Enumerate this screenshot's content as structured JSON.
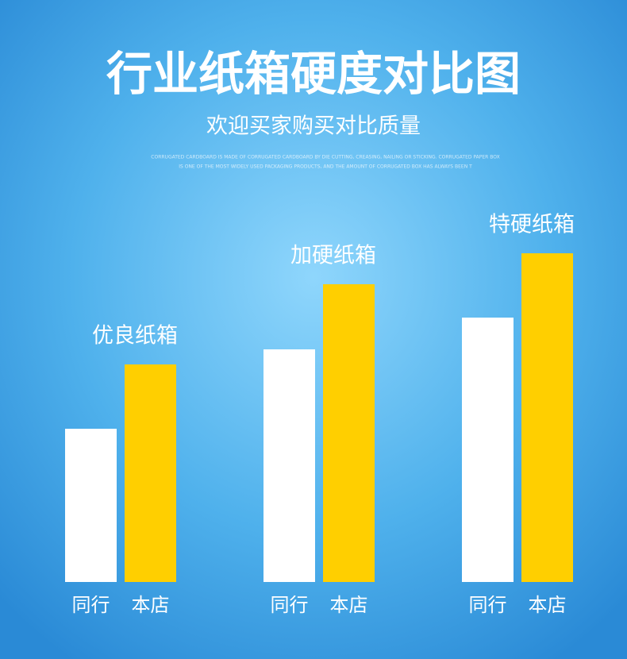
{
  "chart_data": {
    "type": "bar",
    "title": "行业纸箱硬度对比图",
    "subtitle": "欢迎买家购买对比质量",
    "caption": [
      "CORRUGATED CARDBOARD IS MADE OF CORRUGATED CARDBOARD BY DIE CUTTING, CREASING, NAILING OR STICKING. CORRUGATED PAPER BOX",
      "IS ONE OF THE MOST WIDELY USED PACKAGING PRODUCTS, AND THE AMOUNT OF CORRUGATED BOX HAS ALWAYS BEEN T"
    ],
    "categories": [
      "优良纸箱",
      "加硬纸箱",
      "特硬纸箱"
    ],
    "series": [
      {
        "name": "同行",
        "color": "#ffffff",
        "values": [
          193,
          293,
          333
        ]
      },
      {
        "name": "本店",
        "color": "#ffcf00",
        "values": [
          274,
          375,
          414
        ]
      }
    ],
    "ylim": [
      0,
      500
    ]
  }
}
